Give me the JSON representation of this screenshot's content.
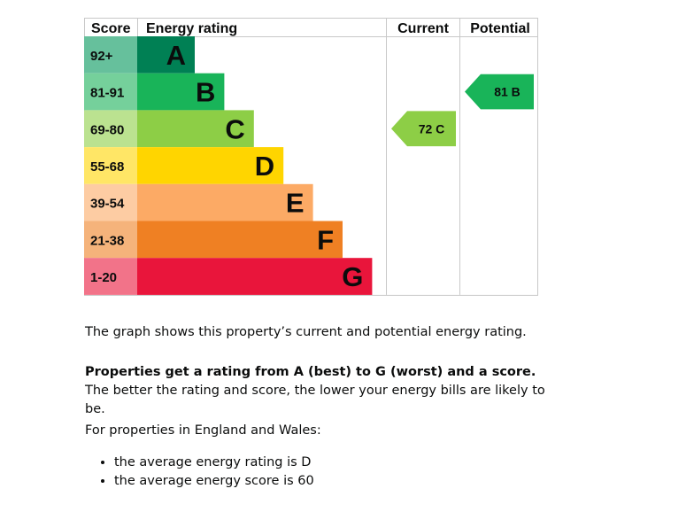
{
  "chart_data": {
    "type": "table",
    "headers": {
      "score": "Score",
      "rating": "Energy rating",
      "current": "Current",
      "potential": "Potential"
    },
    "bands": [
      {
        "score_range": "92+",
        "letter": "A",
        "color": "#008054",
        "score_bg": "#66c09c"
      },
      {
        "score_range": "81-91",
        "letter": "B",
        "color": "#19b459",
        "score_bg": "#75d09b"
      },
      {
        "score_range": "69-80",
        "letter": "C",
        "color": "#8dce46",
        "score_bg": "#bbe290"
      },
      {
        "score_range": "55-68",
        "letter": "D",
        "color": "#ffd500",
        "score_bg": "#ffe666"
      },
      {
        "score_range": "39-54",
        "letter": "E",
        "color": "#fcaa65",
        "score_bg": "#fdcca3"
      },
      {
        "score_range": "21-38",
        "letter": "F",
        "color": "#ef8023",
        "score_bg": "#f5b37b"
      },
      {
        "score_range": "1-20",
        "letter": "G",
        "color": "#e9153b",
        "score_bg": "#f27389"
      }
    ],
    "current": {
      "score": 72,
      "letter": "C",
      "label": "72  C",
      "color": "#8dce46"
    },
    "potential": {
      "score": 81,
      "letter": "B",
      "label": "81  B",
      "color": "#19b459"
    }
  },
  "text": {
    "p1": "The graph shows this property’s current and potential energy rating.",
    "p2_bold": "Properties get a rating from A (best) to G (worst) and a score.",
    "p2_rest": " The better the rating and score, the lower your energy bills are likely to be.",
    "p3": "For properties in England and Wales:",
    "bullets": [
      "the average energy rating is D",
      "the average energy score is 60"
    ]
  }
}
